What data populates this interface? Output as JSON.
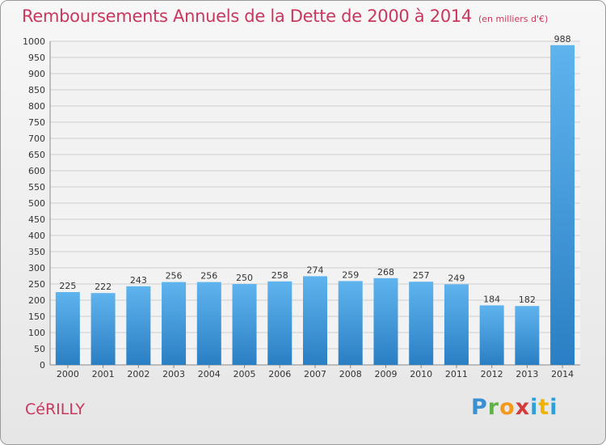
{
  "title": "Remboursements Annuels de la Dette de 2000 à 2014",
  "unit": "(en milliers d'€)",
  "commune": "CéRILLY",
  "logo_text": "Proxiti",
  "chart_data": {
    "type": "bar",
    "title": "Remboursements Annuels de la Dette de 2000 à 2014",
    "subtitle": "(en milliers d'€)",
    "xlabel": "",
    "ylabel": "",
    "categories": [
      "2000",
      "2001",
      "2002",
      "2003",
      "2004",
      "2005",
      "2006",
      "2007",
      "2008",
      "2009",
      "2010",
      "2011",
      "2012",
      "2013",
      "2014"
    ],
    "values": [
      225,
      222,
      243,
      256,
      256,
      250,
      258,
      274,
      259,
      268,
      257,
      249,
      184,
      182,
      988
    ],
    "ylim": [
      0,
      1000
    ],
    "yticks": [
      0,
      50,
      100,
      150,
      200,
      250,
      300,
      350,
      400,
      450,
      500,
      550,
      600,
      650,
      700,
      750,
      800,
      850,
      900,
      950,
      1000
    ],
    "grid": true,
    "colors": {
      "bar_light": "#5fb4ee",
      "bar_dark": "#2a7fc4",
      "grid": "#cfcfcf",
      "text": "#333333",
      "title": "#c8385e"
    }
  }
}
